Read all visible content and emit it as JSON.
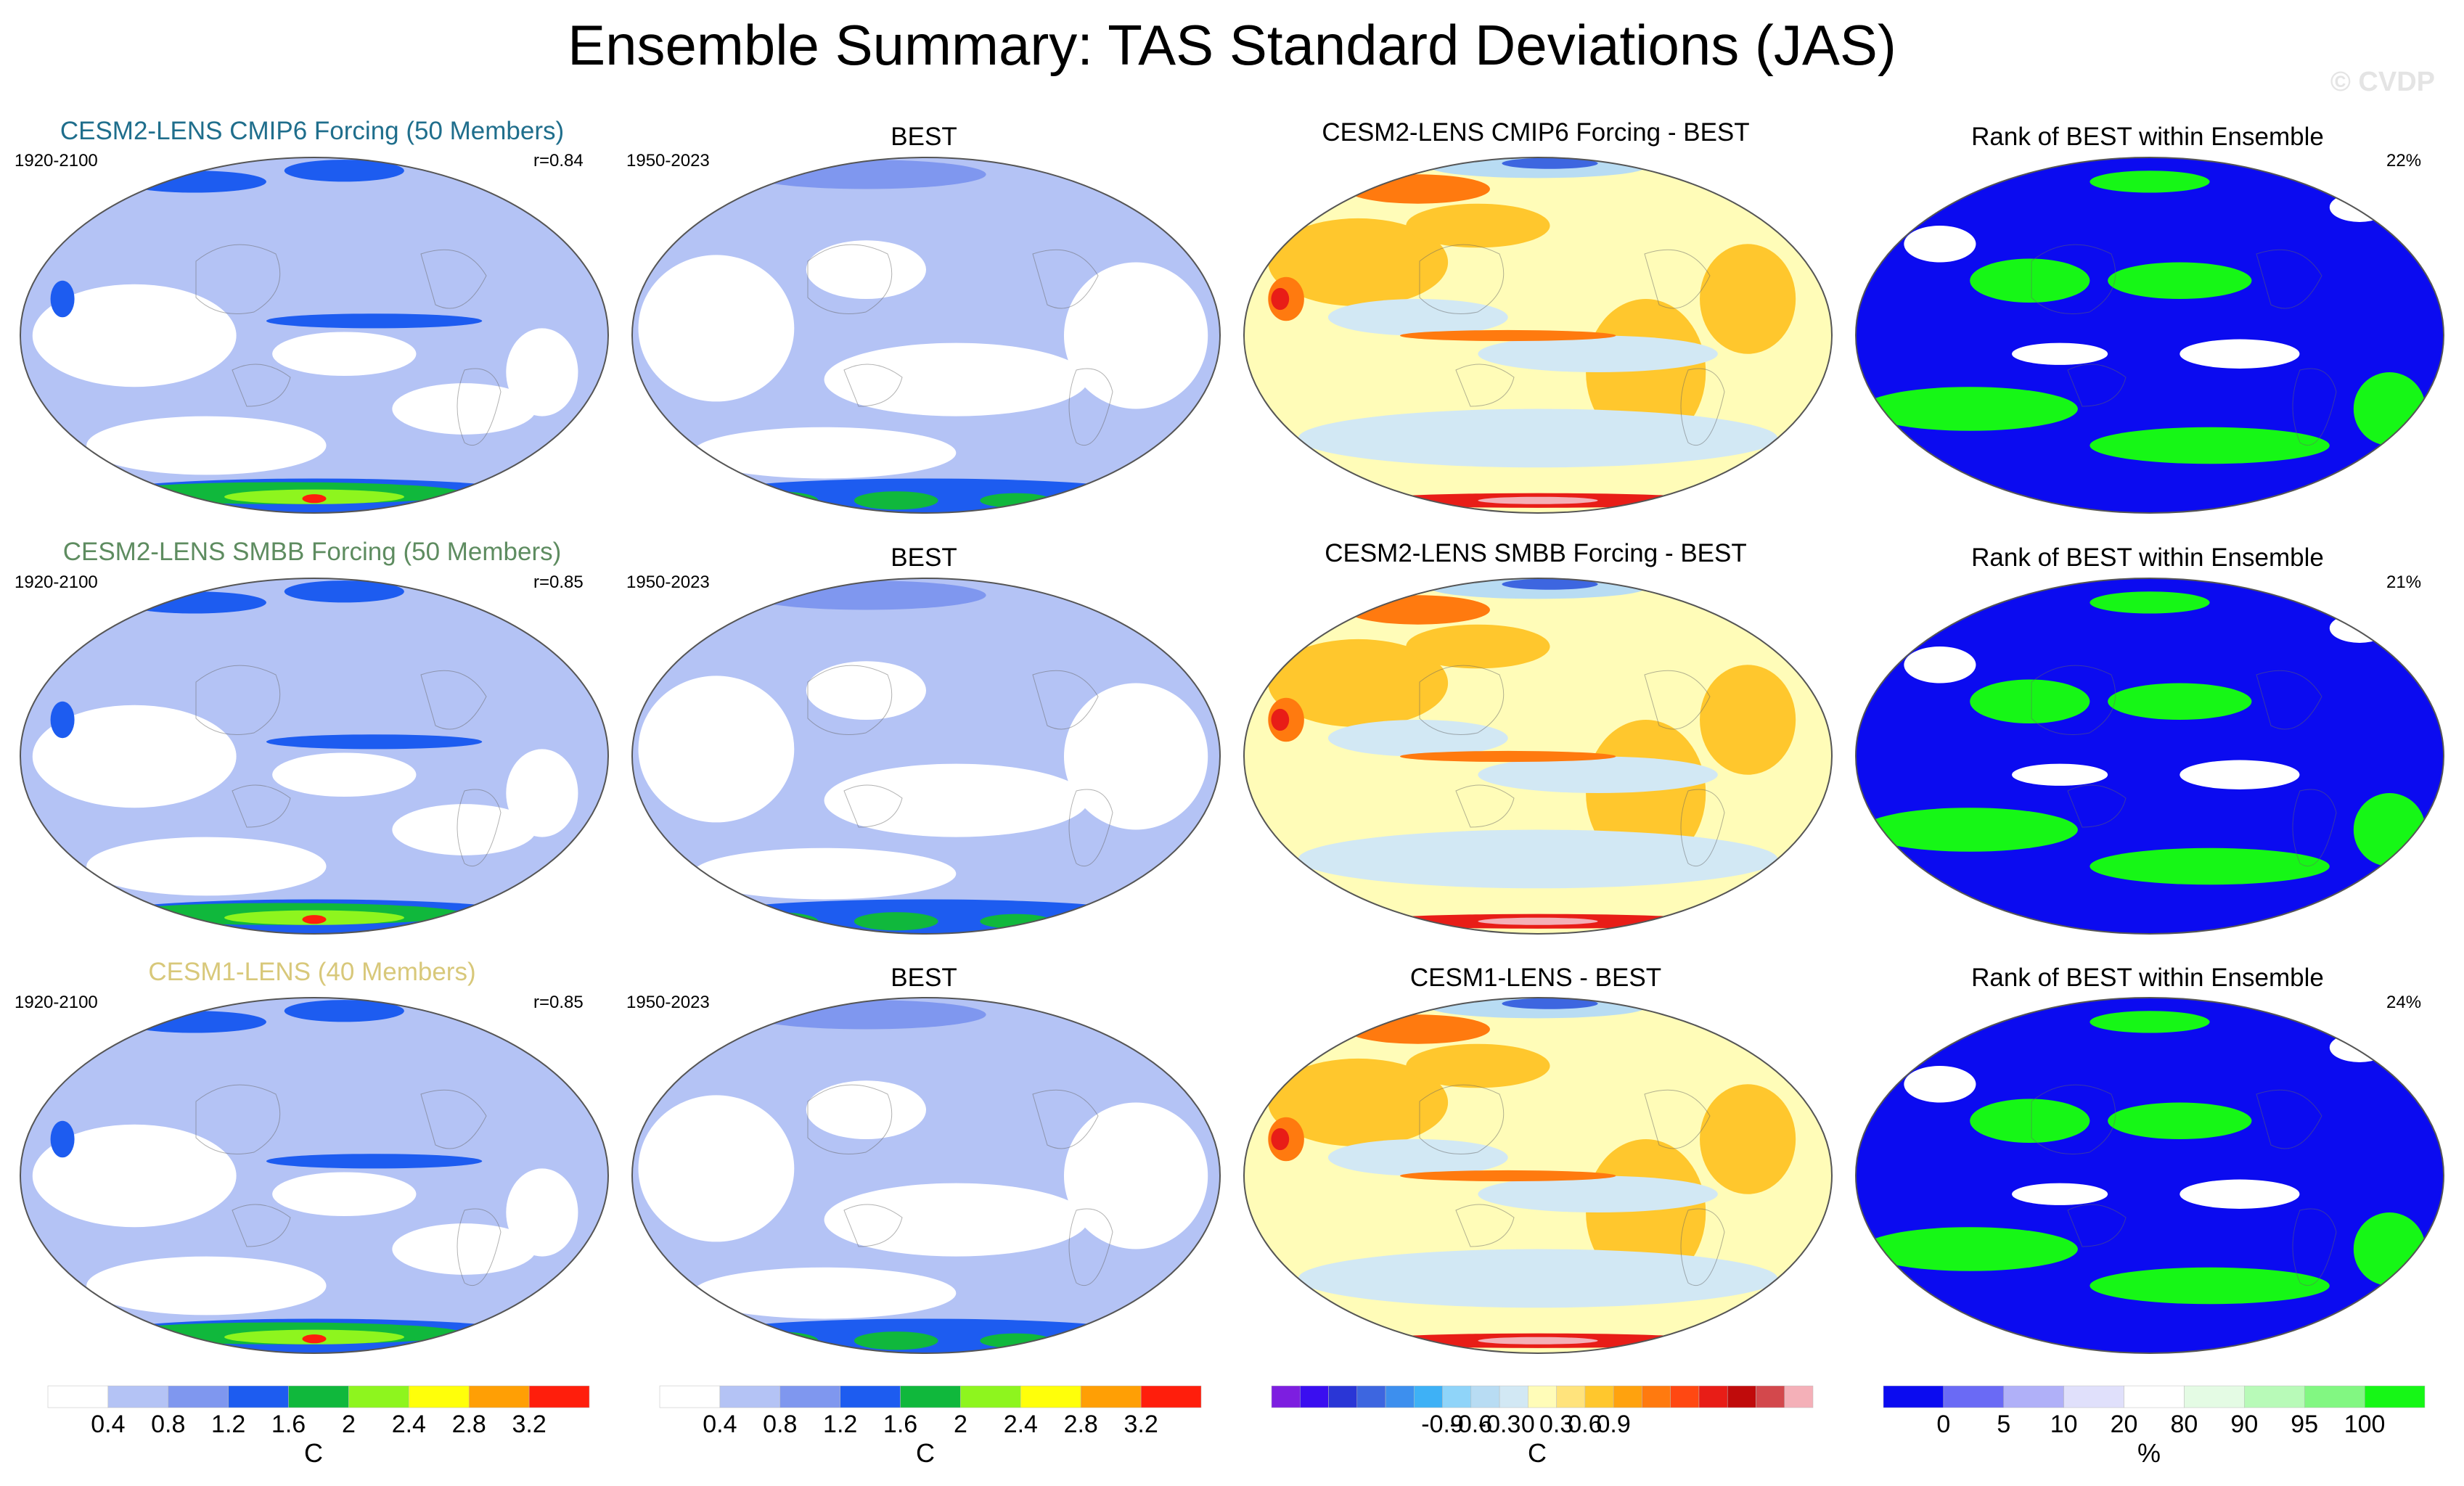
{
  "title": "Ensemble Summary: TAS Standard Deviations (JAS)",
  "watermark": "© CVDP",
  "rows": [
    {
      "model": {
        "title": "CESM2-LENS CMIP6 Forcing (50 Members)",
        "title_color": "#1f6e8c",
        "years": "1920-2100",
        "corr": "r=0.84"
      },
      "obs": {
        "title": "BEST",
        "years": "1950-2023"
      },
      "diff": {
        "title": "CESM2-LENS CMIP6 Forcing - BEST"
      },
      "rank": {
        "title": "Rank of BEST within Ensemble",
        "pct": "22%"
      }
    },
    {
      "model": {
        "title": "CESM2-LENS SMBB Forcing (50 Members)",
        "title_color": "#5e8c60",
        "years": "1920-2100",
        "corr": "r=0.85"
      },
      "obs": {
        "title": "BEST",
        "years": "1950-2023"
      },
      "diff": {
        "title": "CESM2-LENS SMBB Forcing - BEST"
      },
      "rank": {
        "title": "Rank of BEST within Ensemble",
        "pct": "21%"
      }
    },
    {
      "model": {
        "title": "CESM1-LENS (40 Members)",
        "title_color": "#d8c87a",
        "years": "1920-2100",
        "corr": "r=0.85"
      },
      "obs": {
        "title": "BEST",
        "years": "1950-2023"
      },
      "diff": {
        "title": "CESM1-LENS - BEST"
      },
      "rank": {
        "title": "Rank of BEST within Ensemble",
        "pct": "24%"
      }
    }
  ],
  "colorbars": {
    "std": {
      "unit": "C",
      "colors": [
        "#ffffff",
        "#b4c3f5",
        "#7f97ef",
        "#1d5cf0",
        "#10b83c",
        "#8ef51e",
        "#ffff0a",
        "#ff9f05",
        "#ff1e0c"
      ],
      "labels": [
        "0.4",
        "0.8",
        "1.2",
        "1.6",
        "2",
        "2.4",
        "2.8",
        "3.2"
      ]
    },
    "diff": {
      "unit": "C",
      "colors": [
        "#7d1ee0",
        "#3a0ef0",
        "#2a36d6",
        "#3d66e0",
        "#3d8fee",
        "#3eb1f6",
        "#8fd4f9",
        "#b8dcf3",
        "#d2e8f4",
        "#fffcb8",
        "#ffe37c",
        "#ffc72d",
        "#ffa20e",
        "#ff7a0f",
        "#ff4812",
        "#e81d17",
        "#c00b0b",
        "#d3484c",
        "#f4b0b8"
      ],
      "labels": [
        "-0.9",
        "-0.6",
        "-0.3",
        "0",
        "0.3",
        "0.6",
        "0.9"
      ]
    },
    "rank": {
      "unit": "%",
      "colors": [
        "#0b0bf0",
        "#6a6af5",
        "#b0b0f8",
        "#e0e0fb",
        "#ffffff",
        "#e4fbe4",
        "#b8fab8",
        "#82f782",
        "#16f716"
      ],
      "labels": [
        "0",
        "5",
        "10",
        "20",
        "80",
        "90",
        "95",
        "100"
      ]
    }
  }
}
